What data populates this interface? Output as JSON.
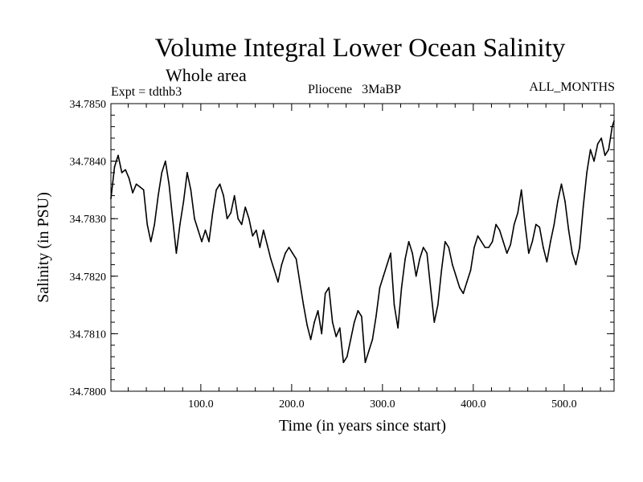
{
  "chart_data": {
    "type": "line",
    "title": "Volume Integral Lower Ocean Salinity",
    "subtitle": "Whole area",
    "experiment_label": "Expt = tdthb3",
    "period_label": "Pliocene   3MaBP",
    "months_label": "ALL_MONTHS",
    "xlabel": "Time (in years since start)",
    "ylabel": "Salinity (in PSU)",
    "xlim": [
      1,
      555
    ],
    "ylim": [
      34.78,
      34.785
    ],
    "x_ticks": [
      100,
      200,
      300,
      400,
      500
    ],
    "x_tick_labels": [
      "100.0",
      "200.0",
      "300.0",
      "400.0",
      "500.0"
    ],
    "y_ticks": [
      34.78,
      34.781,
      34.782,
      34.783,
      34.784,
      34.785
    ],
    "y_tick_labels": [
      "34.7800",
      "34.7810",
      "34.7820",
      "34.7830",
      "34.7840",
      "34.7850"
    ],
    "grid": false,
    "series": [
      {
        "name": "Salinity",
        "color": "#000000",
        "x": [
          1,
          5,
          9,
          13,
          17,
          21,
          25,
          29,
          33,
          37,
          41,
          45,
          49,
          53,
          57,
          61,
          65,
          69,
          73,
          77,
          81,
          85,
          89,
          93,
          97,
          101,
          105,
          109,
          113,
          117,
          121,
          125,
          129,
          133,
          137,
          141,
          145,
          149,
          153,
          157,
          161,
          165,
          169,
          173,
          177,
          181,
          185,
          189,
          193,
          197,
          201,
          205,
          209,
          213,
          217,
          221,
          225,
          229,
          233,
          237,
          241,
          245,
          249,
          253,
          257,
          261,
          265,
          269,
          273,
          277,
          281,
          285,
          289,
          293,
          297,
          301,
          305,
          309,
          313,
          317,
          321,
          325,
          329,
          333,
          337,
          341,
          345,
          349,
          353,
          357,
          361,
          365,
          369,
          373,
          377,
          381,
          385,
          389,
          393,
          397,
          401,
          405,
          409,
          413,
          417,
          421,
          425,
          429,
          433,
          437,
          441,
          445,
          449,
          453,
          457,
          461,
          465,
          469,
          473,
          477,
          481,
          485,
          489,
          493,
          497,
          501,
          505,
          509,
          513,
          517,
          521,
          525,
          529,
          533,
          537,
          541,
          545,
          549,
          553,
          555
        ],
        "values": [
          34.78335,
          34.7839,
          34.7841,
          34.7838,
          34.78385,
          34.7837,
          34.78345,
          34.7836,
          34.78355,
          34.7835,
          34.7829,
          34.7826,
          34.7829,
          34.7834,
          34.7838,
          34.784,
          34.7836,
          34.783,
          34.7824,
          34.7829,
          34.7833,
          34.7838,
          34.7835,
          34.783,
          34.7828,
          34.7826,
          34.7828,
          34.7826,
          34.7831,
          34.7835,
          34.7836,
          34.7834,
          34.783,
          34.7831,
          34.7834,
          34.783,
          34.7829,
          34.7832,
          34.783,
          34.7827,
          34.7828,
          34.7825,
          34.7828,
          34.78255,
          34.7823,
          34.7821,
          34.7819,
          34.7822,
          34.7824,
          34.7825,
          34.7824,
          34.7823,
          34.7819,
          34.7815,
          34.78115,
          34.7809,
          34.7812,
          34.7814,
          34.781,
          34.7817,
          34.7818,
          34.7812,
          34.78095,
          34.7811,
          34.7805,
          34.7806,
          34.7809,
          34.7812,
          34.7814,
          34.7813,
          34.7805,
          34.7807,
          34.7809,
          34.7813,
          34.7818,
          34.782,
          34.7822,
          34.7824,
          34.7815,
          34.7811,
          34.7818,
          34.7823,
          34.7826,
          34.7824,
          34.782,
          34.7823,
          34.7825,
          34.7824,
          34.7818,
          34.7812,
          34.7815,
          34.7821,
          34.7826,
          34.7825,
          34.7822,
          34.782,
          34.7818,
          34.7817,
          34.7819,
          34.7821,
          34.7825,
          34.7827,
          34.7826,
          34.7825,
          34.7825,
          34.7826,
          34.7829,
          34.7828,
          34.7826,
          34.7824,
          34.78255,
          34.7829,
          34.7831,
          34.7835,
          34.7829,
          34.7824,
          34.7826,
          34.7829,
          34.78285,
          34.7825,
          34.78225,
          34.7826,
          34.7829,
          34.7833,
          34.7836,
          34.7833,
          34.7828,
          34.7824,
          34.7822,
          34.7825,
          34.7832,
          34.7838,
          34.7842,
          34.784,
          34.7843,
          34.7844,
          34.7841,
          34.7842,
          34.7846,
          34.7847
        ]
      }
    ]
  }
}
